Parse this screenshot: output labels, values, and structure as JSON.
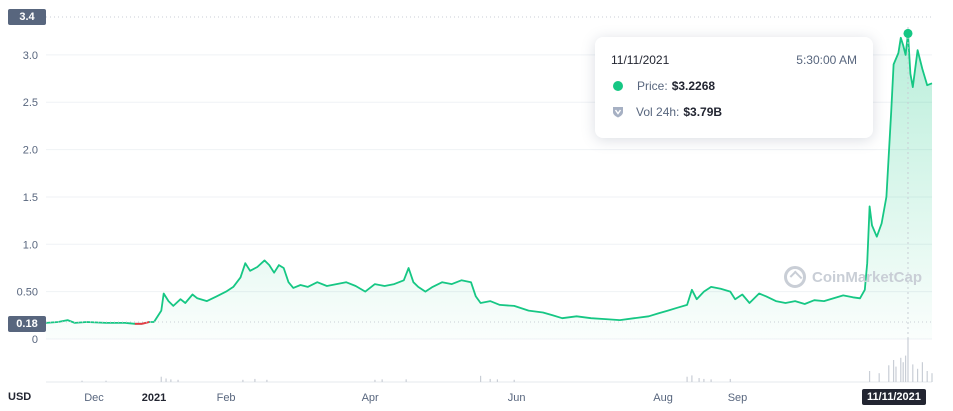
{
  "chart_data": {
    "type": "area",
    "currency_label": "USD",
    "y_ticks": [
      "3.0",
      "2.5",
      "2.0",
      "1.5",
      "1.0",
      "0.50",
      "0"
    ],
    "y_tick_values": [
      3.0,
      2.5,
      2.0,
      1.5,
      1.0,
      0.5,
      0
    ],
    "ylim": [
      0,
      3.4
    ],
    "max_badge": "3.4",
    "min_badge": "0.18",
    "x_ticks": [
      "Dec",
      "2021",
      "Feb",
      "Apr",
      "Jun",
      "Aug",
      "Sep"
    ],
    "x_tick_days": [
      -25,
      0,
      30,
      90,
      151,
      212,
      243
    ],
    "hover_date_badge": "11/11/2021",
    "hover_day": 314,
    "series": [
      {
        "points": [
          [
            -45,
            0.17
          ],
          [
            -40,
            0.18
          ],
          [
            -36,
            0.2
          ],
          [
            -33,
            0.17
          ],
          [
            -28,
            0.18
          ],
          [
            -20,
            0.17
          ],
          [
            -12,
            0.17
          ],
          [
            -8,
            0.16
          ],
          [
            -5,
            0.16
          ],
          [
            -2,
            0.18
          ],
          [
            0,
            0.18
          ],
          [
            3,
            0.3
          ],
          [
            4,
            0.48
          ],
          [
            6,
            0.4
          ],
          [
            8,
            0.35
          ],
          [
            11,
            0.42
          ],
          [
            13,
            0.38
          ],
          [
            16,
            0.47
          ],
          [
            18,
            0.43
          ],
          [
            22,
            0.4
          ],
          [
            26,
            0.45
          ],
          [
            30,
            0.5
          ],
          [
            33,
            0.55
          ],
          [
            36,
            0.65
          ],
          [
            38,
            0.8
          ],
          [
            40,
            0.72
          ],
          [
            43,
            0.76
          ],
          [
            46,
            0.83
          ],
          [
            48,
            0.78
          ],
          [
            50,
            0.7
          ],
          [
            52,
            0.78
          ],
          [
            54,
            0.75
          ],
          [
            56,
            0.6
          ],
          [
            58,
            0.54
          ],
          [
            61,
            0.57
          ],
          [
            64,
            0.55
          ],
          [
            68,
            0.6
          ],
          [
            72,
            0.56
          ],
          [
            76,
            0.58
          ],
          [
            80,
            0.6
          ],
          [
            84,
            0.56
          ],
          [
            88,
            0.5
          ],
          [
            92,
            0.58
          ],
          [
            96,
            0.56
          ],
          [
            100,
            0.58
          ],
          [
            104,
            0.62
          ],
          [
            106,
            0.75
          ],
          [
            108,
            0.6
          ],
          [
            110,
            0.55
          ],
          [
            113,
            0.5
          ],
          [
            116,
            0.55
          ],
          [
            120,
            0.6
          ],
          [
            124,
            0.58
          ],
          [
            128,
            0.62
          ],
          [
            132,
            0.6
          ],
          [
            134,
            0.45
          ],
          [
            136,
            0.38
          ],
          [
            140,
            0.4
          ],
          [
            144,
            0.36
          ],
          [
            150,
            0.35
          ],
          [
            156,
            0.3
          ],
          [
            162,
            0.28
          ],
          [
            166,
            0.25
          ],
          [
            170,
            0.22
          ],
          [
            176,
            0.24
          ],
          [
            182,
            0.22
          ],
          [
            188,
            0.21
          ],
          [
            194,
            0.2
          ],
          [
            200,
            0.22
          ],
          [
            206,
            0.24
          ],
          [
            210,
            0.27
          ],
          [
            214,
            0.3
          ],
          [
            218,
            0.33
          ],
          [
            222,
            0.36
          ],
          [
            224,
            0.52
          ],
          [
            226,
            0.42
          ],
          [
            229,
            0.5
          ],
          [
            232,
            0.55
          ],
          [
            236,
            0.53
          ],
          [
            240,
            0.5
          ],
          [
            242,
            0.42
          ],
          [
            245,
            0.47
          ],
          [
            248,
            0.38
          ],
          [
            252,
            0.48
          ],
          [
            255,
            0.45
          ],
          [
            259,
            0.4
          ],
          [
            263,
            0.38
          ],
          [
            267,
            0.4
          ],
          [
            271,
            0.37
          ],
          [
            275,
            0.41
          ],
          [
            279,
            0.4
          ],
          [
            283,
            0.43
          ],
          [
            287,
            0.46
          ],
          [
            291,
            0.44
          ],
          [
            294,
            0.43
          ],
          [
            296,
            0.52
          ],
          [
            297,
            0.8
          ],
          [
            298,
            1.4
          ],
          [
            299,
            1.2
          ],
          [
            301,
            1.08
          ],
          [
            303,
            1.22
          ],
          [
            305,
            1.5
          ],
          [
            307,
            2.4
          ],
          [
            308,
            2.9
          ],
          [
            310,
            3.02
          ],
          [
            311,
            3.18
          ],
          [
            312,
            3.1
          ],
          [
            313,
            3.0
          ],
          [
            314,
            3.2268
          ],
          [
            315,
            2.8
          ],
          [
            316,
            2.66
          ],
          [
            318,
            3.05
          ],
          [
            320,
            2.85
          ],
          [
            322,
            2.68
          ],
          [
            324,
            2.7
          ]
        ]
      }
    ],
    "volume_days": [
      -30,
      -20,
      3,
      5,
      7,
      10,
      37,
      42,
      47,
      92,
      95,
      105,
      136,
      140,
      143,
      150,
      222,
      224,
      227,
      229,
      232,
      240,
      298,
      302,
      306,
      308,
      309,
      311,
      312,
      313,
      314,
      316,
      318,
      320,
      322,
      324
    ],
    "volume_levels": [
      0.03,
      0.03,
      0.12,
      0.08,
      0.06,
      0.05,
      0.05,
      0.07,
      0.05,
      0.05,
      0.06,
      0.06,
      0.14,
      0.07,
      0.06,
      0.05,
      0.12,
      0.15,
      0.09,
      0.07,
      0.06,
      0.07,
      0.25,
      0.2,
      0.38,
      0.5,
      0.35,
      0.55,
      0.45,
      0.6,
      1.0,
      0.4,
      0.3,
      0.45,
      0.25,
      0.2
    ]
  },
  "tooltip": {
    "date": "11/11/2021",
    "time": "5:30:00 AM",
    "price_label": "Price:",
    "price_value": "$3.2268",
    "vol_label": "Vol 24h:",
    "vol_value": "$3.79B"
  },
  "watermark": "CoinMarketCap",
  "colors": {
    "up": "#16c784",
    "down": "#ea3943",
    "grid": "#eff2f5",
    "badge": "#58667e"
  }
}
